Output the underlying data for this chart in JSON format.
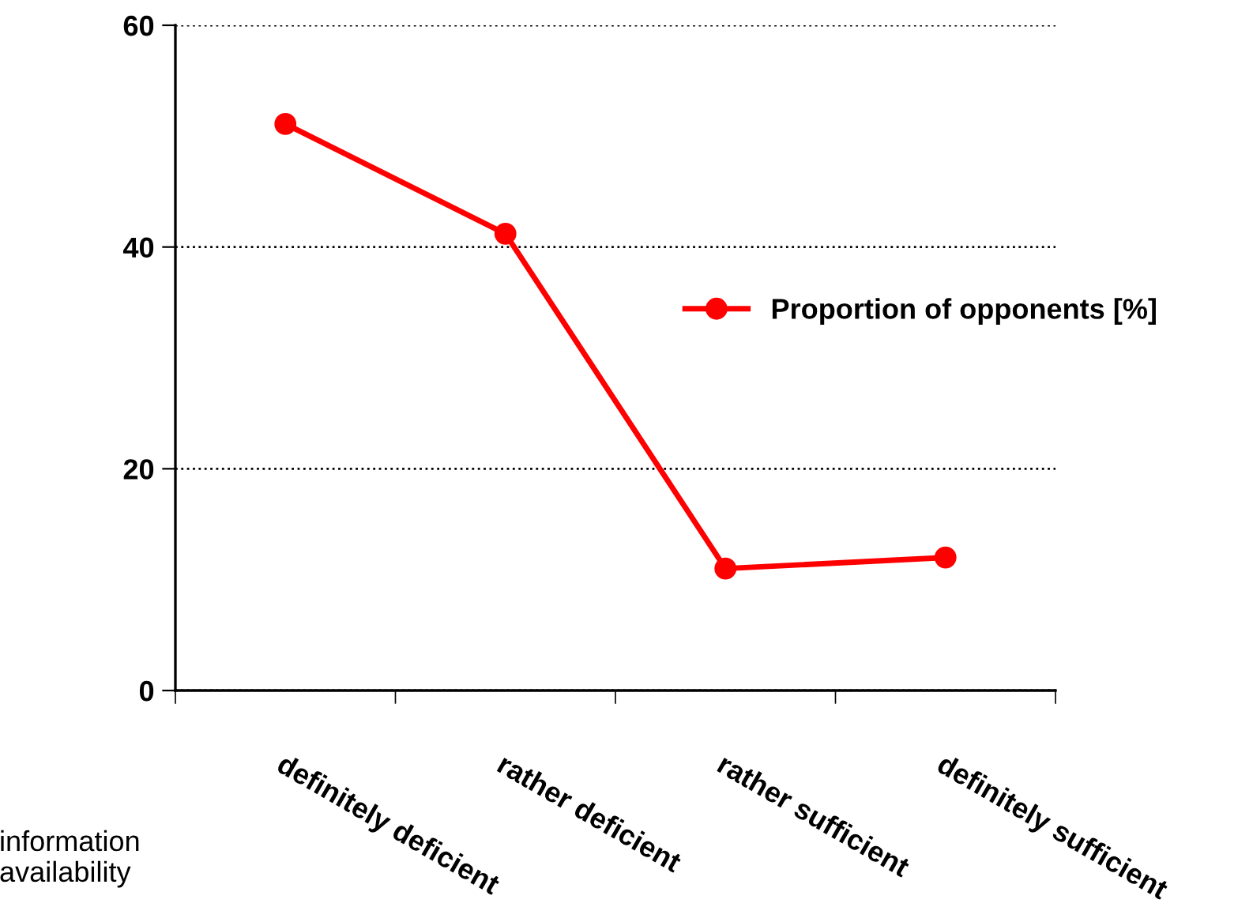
{
  "chart_data": {
    "type": "line",
    "xlabel": "information availability",
    "categories": [
      "definitely deficient",
      "rather deficient",
      "rather sufficient",
      "definitely sufficient"
    ],
    "series": [
      {
        "name": "Proportion of opponents [%]",
        "color": "#ff0000",
        "values": [
          51.1,
          41.2,
          11.0,
          12.0
        ]
      }
    ],
    "ylim": [
      0,
      60
    ],
    "yticks": [
      0,
      20,
      40,
      60
    ],
    "grid": "y",
    "legend": "right",
    "marker": "circle",
    "line_style": "solid"
  }
}
